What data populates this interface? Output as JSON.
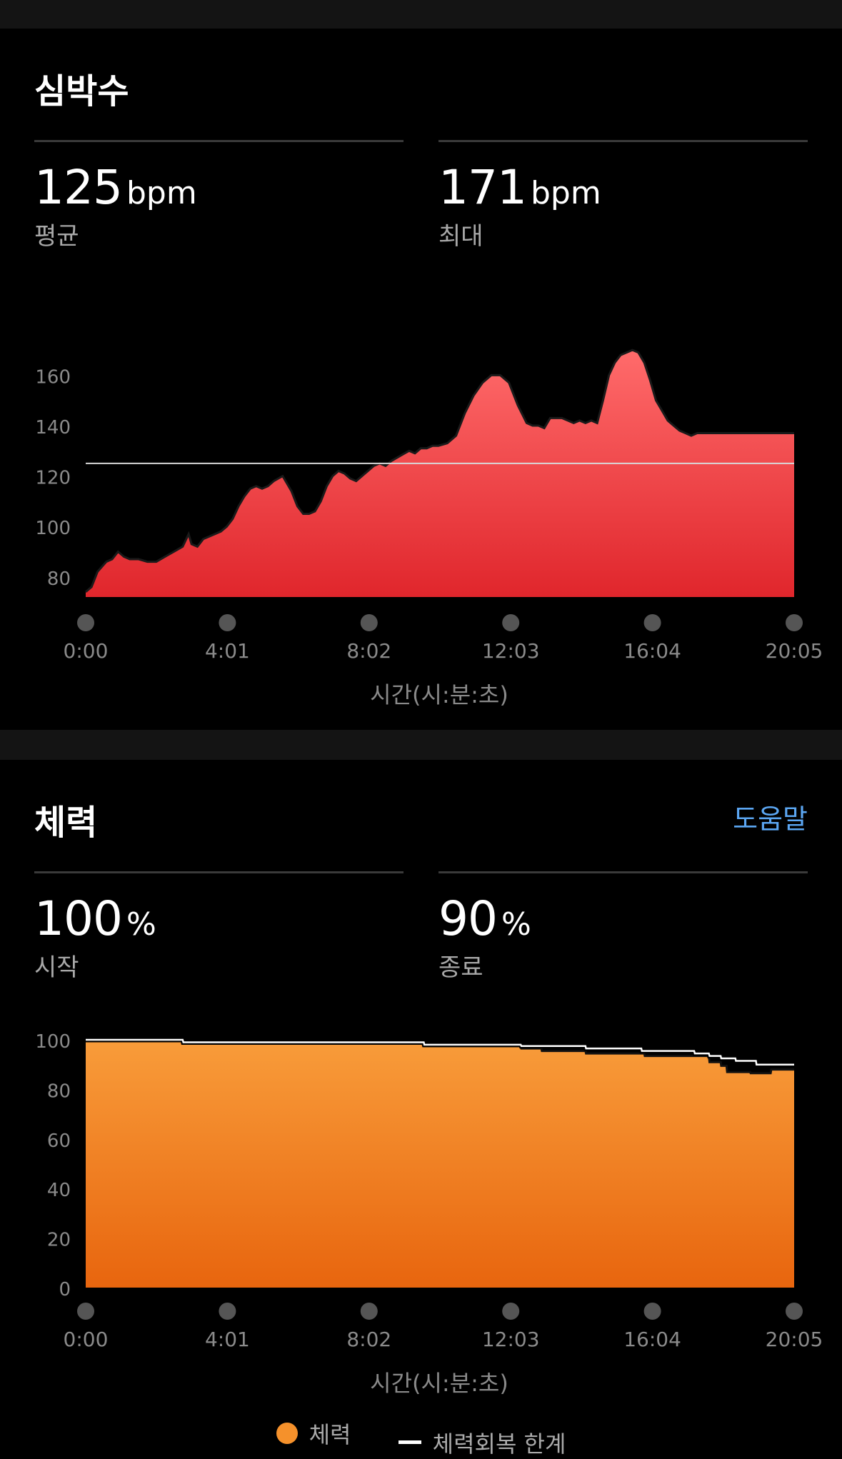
{
  "heart_rate": {
    "title": "심박수",
    "avg": {
      "value": "125",
      "unit": "bpm",
      "label": "평균"
    },
    "max": {
      "value": "171",
      "unit": "bpm",
      "label": "최대"
    },
    "x_axis_label": "시간(시:분:초)"
  },
  "stamina": {
    "title": "체력",
    "help_label": "도움말",
    "start": {
      "value": "100",
      "unit": "%",
      "label": "시작"
    },
    "end": {
      "value": "90",
      "unit": "%",
      "label": "종료"
    },
    "x_axis_label": "시간(시:분:초)",
    "legend": {
      "stamina": "체력",
      "recovery": "체력회복 한계"
    }
  },
  "colors": {
    "hr_fill_top": "#ff6b6b",
    "hr_fill_bottom": "#e0262c",
    "stamina_fill_top": "#f89c3a",
    "stamina_fill_bottom": "#e8650e",
    "help_link": "#5ba6f2"
  },
  "chart_data": [
    {
      "type": "area",
      "title": "",
      "xlabel": "시간(시:분:초)",
      "ylabel": "",
      "x_ticks": [
        "0:00",
        "4:01",
        "8:02",
        "12:03",
        "16:04",
        "20:05"
      ],
      "y_ticks": [
        80,
        100,
        120,
        140,
        160
      ],
      "ylim": [
        72,
        172
      ],
      "xlim": [
        0,
        1205
      ],
      "reference_line": 125,
      "series": [
        {
          "x": [
            0,
            10,
            20,
            35,
            45,
            55,
            65,
            75,
            90,
            105,
            120,
            135,
            150,
            165,
            175,
            180,
            190,
            200,
            210,
            220,
            230,
            240,
            250,
            260,
            270,
            280,
            290,
            300,
            310,
            320,
            335,
            350,
            360,
            370,
            380,
            390,
            400,
            410,
            420,
            430,
            440,
            450,
            460,
            470,
            480,
            490,
            500,
            510,
            520,
            535,
            550,
            560,
            570,
            580,
            590,
            600,
            615,
            630,
            645,
            660,
            675,
            690,
            705,
            720,
            735,
            750,
            760,
            770,
            780,
            790,
            800,
            810,
            820,
            830,
            840,
            850,
            860,
            870,
            880,
            890,
            900,
            910,
            920,
            930,
            940,
            950,
            960,
            970,
            980,
            990,
            1000,
            1010,
            1020,
            1030,
            1040,
            1050,
            1060,
            1070,
            1080,
            1090,
            1100,
            1110,
            1120,
            1130,
            1140,
            1150,
            1160,
            1170,
            1180,
            1190,
            1200,
            1205
          ],
          "y": [
            74,
            76,
            82,
            86,
            87,
            90,
            88,
            87,
            87,
            86,
            86,
            88,
            90,
            92,
            97,
            93,
            92,
            95,
            96,
            97,
            98,
            100,
            103,
            108,
            112,
            115,
            116,
            115,
            116,
            118,
            120,
            114,
            108,
            105,
            105,
            106,
            110,
            116,
            120,
            122,
            121,
            119,
            118,
            120,
            122,
            124,
            125,
            124,
            126,
            128,
            130,
            129,
            131,
            131,
            132,
            132,
            133,
            136,
            145,
            152,
            157,
            160,
            160,
            157,
            148,
            141,
            140,
            140,
            139,
            143,
            143,
            143,
            142,
            141,
            142,
            141,
            142,
            141,
            150,
            160,
            165,
            168,
            169,
            170,
            169,
            165,
            158,
            150,
            146,
            142,
            140,
            138,
            137,
            136,
            137,
            137,
            137,
            137,
            137,
            137,
            137,
            137,
            137,
            137,
            137,
            137,
            137,
            137,
            137,
            137,
            137,
            137
          ]
        }
      ]
    },
    {
      "type": "area",
      "title": "",
      "xlabel": "시간(시:분:초)",
      "ylabel": "",
      "x_ticks": [
        "0:00",
        "4:01",
        "8:02",
        "12:03",
        "16:04",
        "20:05"
      ],
      "y_ticks": [
        0,
        20,
        40,
        60,
        80,
        100
      ],
      "ylim": [
        0,
        100
      ],
      "xlim": [
        0,
        1205
      ],
      "series": [
        {
          "name": "체력",
          "x": [
            0,
            165,
            166,
            575,
            576,
            740,
            741,
            775,
            776,
            850,
            851,
            950,
            951,
            1060,
            1061,
            1080,
            1081,
            1090,
            1091,
            1130,
            1131,
            1165,
            1166,
            1205
          ],
          "y": [
            100,
            100,
            98.5,
            98.5,
            97.5,
            97.5,
            96.5,
            96.5,
            95.5,
            95.5,
            94.5,
            94.5,
            93.5,
            93.5,
            91,
            91,
            89.5,
            89.5,
            87,
            87,
            86.5,
            86.5,
            88,
            88
          ]
        },
        {
          "name": "체력회복 한계",
          "x": [
            0,
            165,
            166,
            575,
            576,
            740,
            741,
            850,
            851,
            945,
            946,
            1035,
            1036,
            1060,
            1061,
            1080,
            1081,
            1105,
            1106,
            1140,
            1141,
            1205
          ],
          "y": [
            100,
            100,
            99,
            99,
            98,
            98,
            97.5,
            97.5,
            96.5,
            96.5,
            95.5,
            95.5,
            94.5,
            94.5,
            93.5,
            93.5,
            92.5,
            92.5,
            91.5,
            91.5,
            90,
            90
          ]
        }
      ]
    }
  ]
}
